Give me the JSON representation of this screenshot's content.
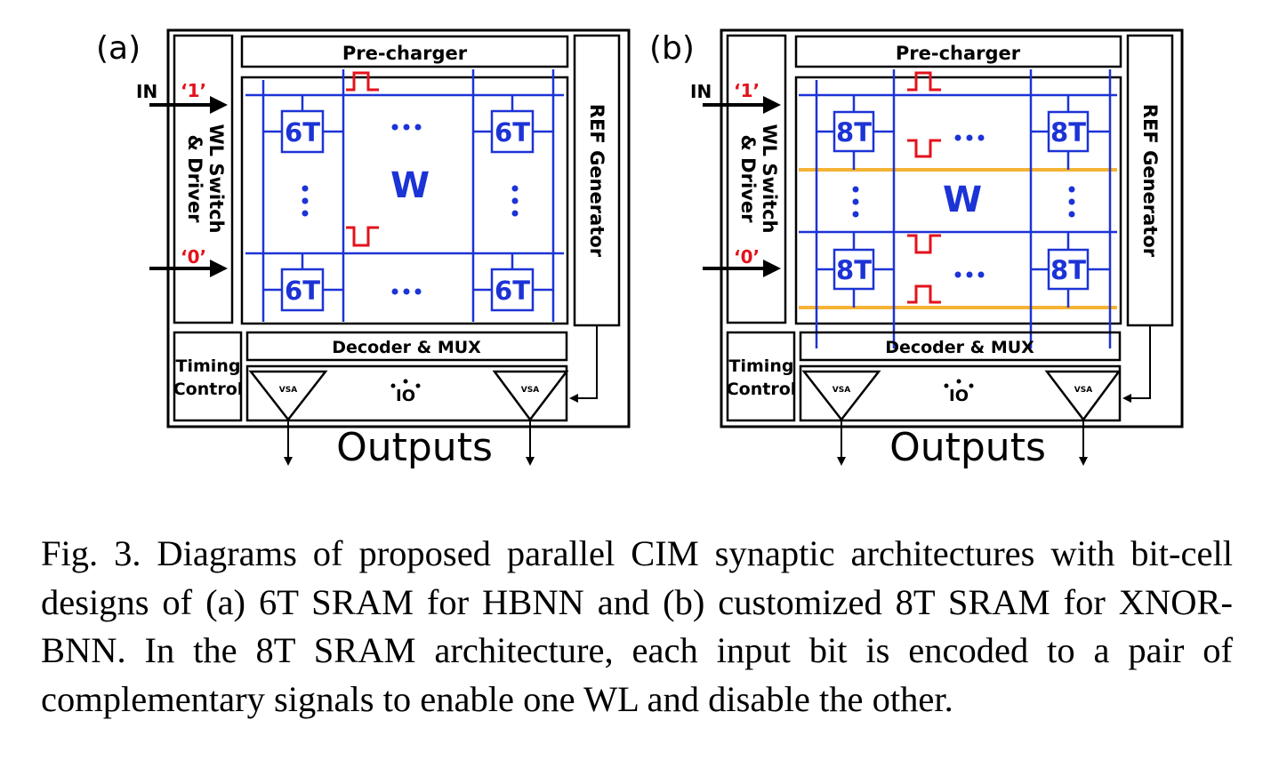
{
  "panels": [
    {
      "id": "a",
      "label": "(a)",
      "precharger": "Pre-charger",
      "in_label": "IN",
      "in_one": "‘1’",
      "in_zero": "‘0’",
      "wl_line1": "WL Switch",
      "wl_line2": "& Driver",
      "ref": "REF Generator",
      "weight": "W",
      "cell": "6T",
      "decoder": "Decoder &  MUX",
      "timing_line1": "Timing",
      "timing_line2": "Control",
      "vsa": "VSA",
      "io": "IO",
      "outputs": "Outputs"
    },
    {
      "id": "b",
      "label": "(b)",
      "precharger": "Pre-charger",
      "in_label": "IN",
      "in_one": "‘1’",
      "in_zero": "‘0’",
      "wl_line1": "WL Switch",
      "wl_line2": "& Driver",
      "ref": "REF Generator",
      "weight": "W",
      "cell": "8T",
      "decoder": "Decoder &  MUX",
      "timing_line1": "Timing",
      "timing_line2": "Control",
      "vsa": "VSA",
      "io": "IO",
      "outputs": "Outputs"
    }
  ],
  "caption": "Fig. 3. Diagrams of proposed parallel CIM synaptic architectures with bit-cell designs of (a) 6T SRAM for HBNN and (b) customized 8T SRAM for XNOR-BNN. In the 8T SRAM architecture, each input bit is encoded to a pair of complementary signals to enable one WL and disable the other.",
  "colors": {
    "wire": "#1c33d6",
    "pulse": "#e3121b",
    "wordline_8t": "#f5b335",
    "outline": "#000000"
  }
}
